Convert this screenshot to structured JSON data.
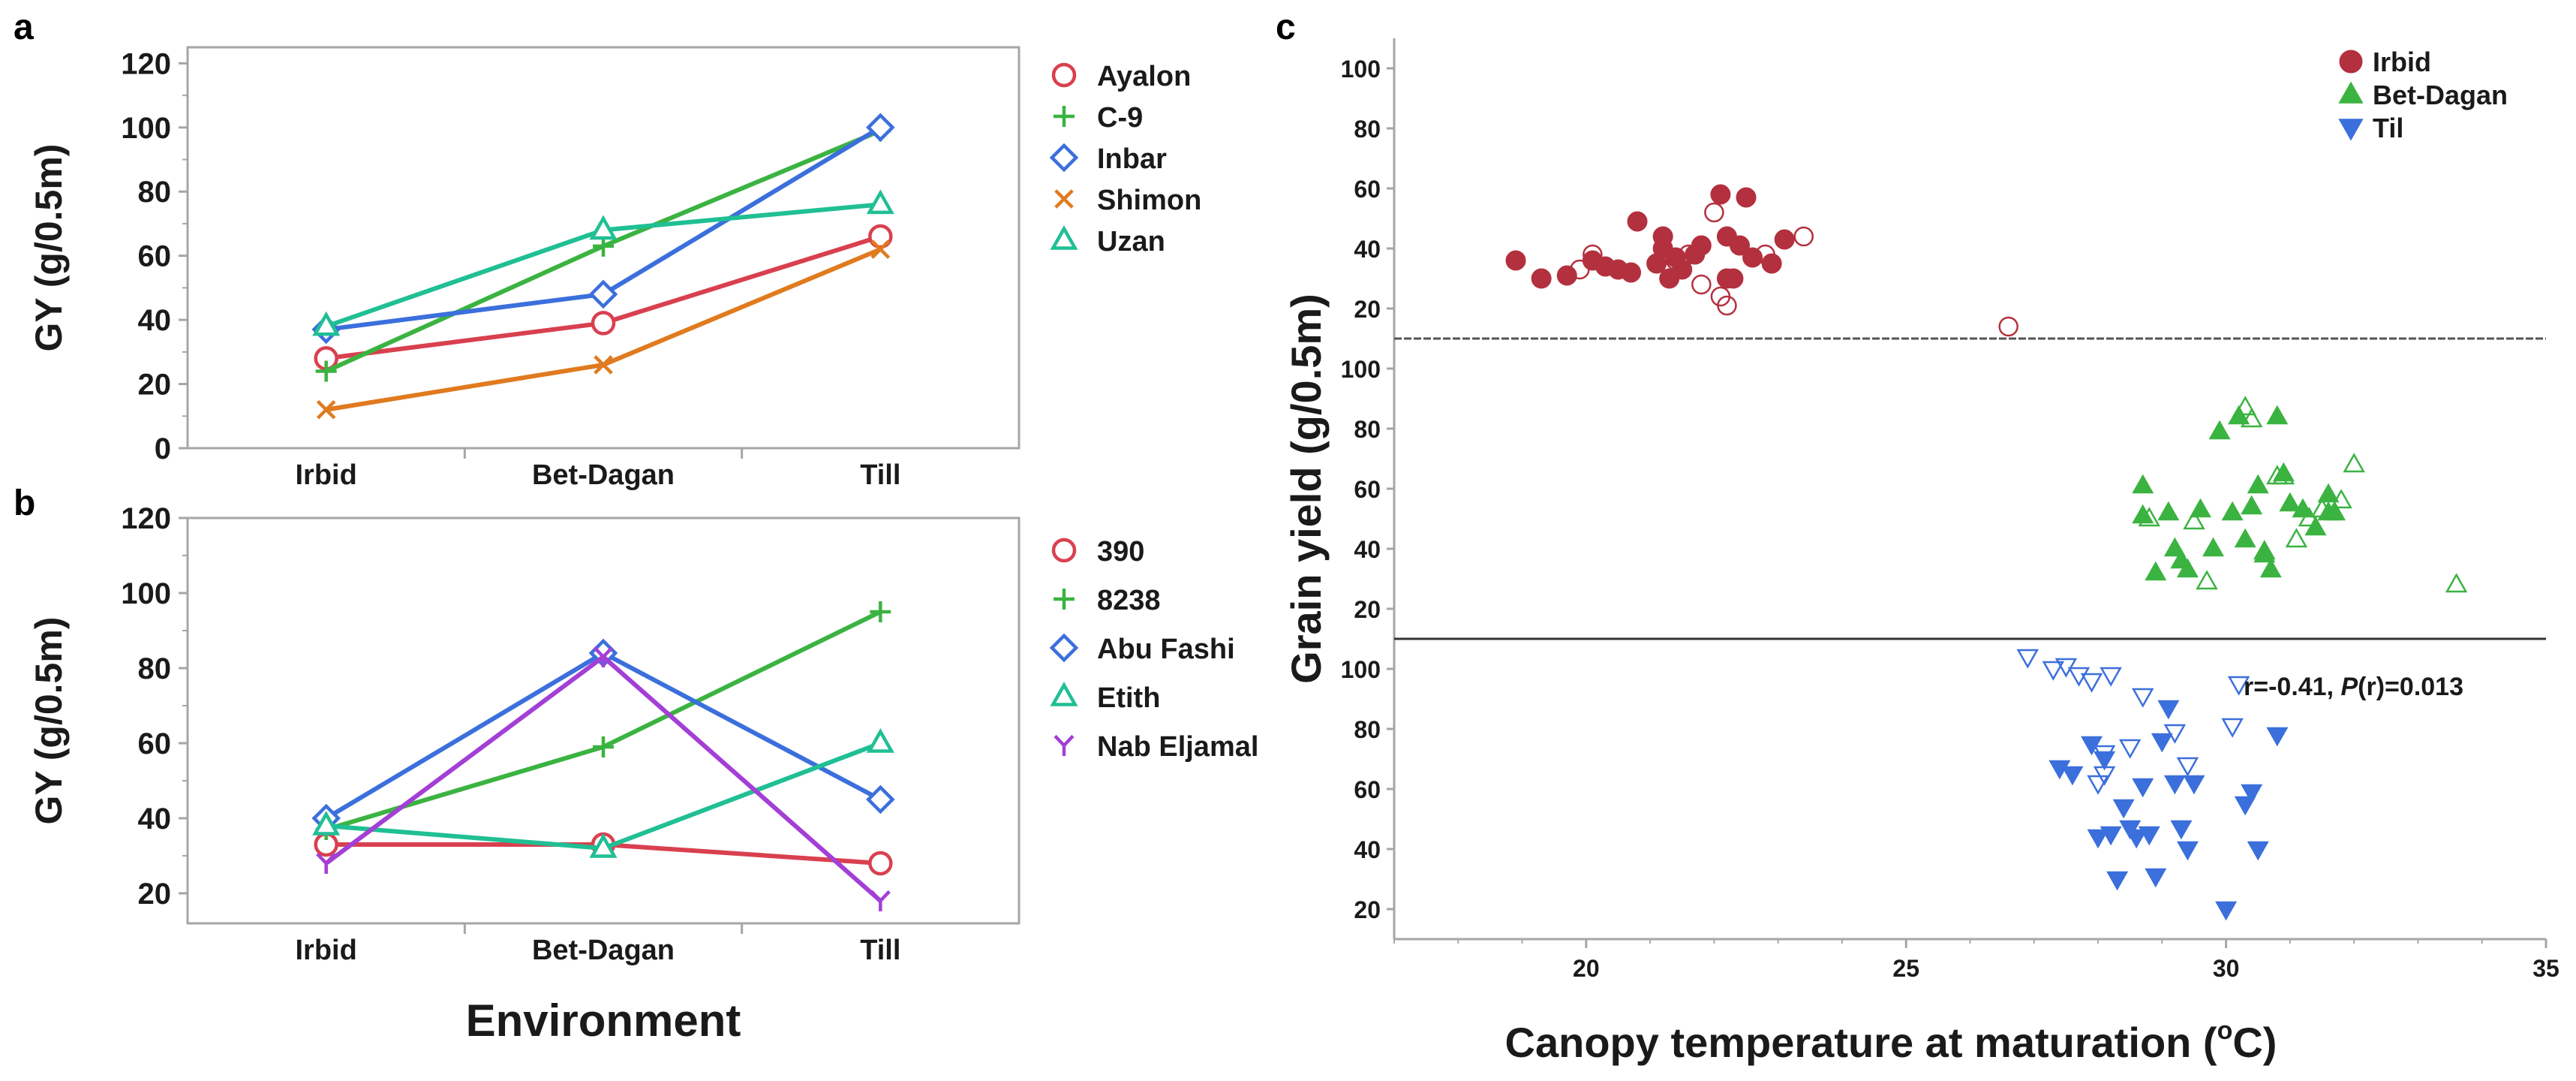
{
  "panels": {
    "a": {
      "label": "a"
    },
    "b": {
      "label": "b"
    },
    "c": {
      "label": "c"
    }
  },
  "colors": {
    "red": "#d9404f",
    "green": "#3bb341",
    "blue": "#3b6fdc",
    "orange": "#e07a1f",
    "teal": "#20bf94",
    "purple": "#a33fd6",
    "darkred": "#b3303e",
    "axis": "#a6a6a6",
    "text": "#1a1a1a"
  },
  "chart_data": [
    {
      "id": "a",
      "type": "line",
      "title": "",
      "xlabel": "",
      "ylabel": "GY (g/0.5m)",
      "categories": [
        "Irbid",
        "Bet-Dagan",
        "Till"
      ],
      "ylim": [
        0,
        125
      ],
      "yticks": [
        0,
        20,
        40,
        60,
        80,
        100,
        120
      ],
      "legend_position": "right",
      "series": [
        {
          "name": "Ayalon",
          "marker": "circle",
          "color": "#d9404f",
          "values": [
            28,
            39,
            66
          ]
        },
        {
          "name": "C-9",
          "marker": "plus",
          "color": "#3bb341",
          "values": [
            24,
            63,
            99
          ]
        },
        {
          "name": "Inbar",
          "marker": "diamond",
          "color": "#3b6fdc",
          "values": [
            37,
            48,
            100
          ]
        },
        {
          "name": "Shimon",
          "marker": "x",
          "color": "#e07a1f",
          "values": [
            12,
            26,
            62
          ]
        },
        {
          "name": "Uzan",
          "marker": "triangle",
          "color": "#20bf94",
          "values": [
            38,
            68,
            76
          ]
        }
      ]
    },
    {
      "id": "b",
      "type": "line",
      "title": "",
      "xlabel": "Environment",
      "ylabel": "GY (g/0.5m)",
      "categories": [
        "Irbid",
        "Bet-Dagan",
        "Till"
      ],
      "ylim": [
        12,
        120
      ],
      "yticks": [
        20,
        40,
        60,
        80,
        100,
        120
      ],
      "legend_position": "right",
      "series": [
        {
          "name": "390",
          "marker": "circle",
          "color": "#d9404f",
          "values": [
            33,
            33,
            28
          ]
        },
        {
          "name": "8238",
          "marker": "plus",
          "color": "#3bb341",
          "values": [
            37,
            59,
            95
          ]
        },
        {
          "name": "Abu Fashi",
          "marker": "diamond",
          "color": "#3b6fdc",
          "values": [
            40,
            84,
            45
          ]
        },
        {
          "name": "Etith",
          "marker": "triangle",
          "color": "#20bf94",
          "values": [
            38,
            32,
            60
          ]
        },
        {
          "name": "Nab Eljamal",
          "marker": "y",
          "color": "#a33fd6",
          "values": [
            28,
            83,
            18
          ]
        }
      ]
    },
    {
      "id": "c",
      "type": "scatter",
      "title": "",
      "xlabel": "Canopy temperature at maturation (°C)",
      "xlabel_main": "Canopy temperature at maturation (",
      "xlabel_sup": "o",
      "xlabel_end": "C)",
      "ylabel": "Grain yield (g/0.5m)",
      "xlim": [
        17,
        35
      ],
      "xticks": [
        20,
        25,
        30,
        35
      ],
      "ylim": [
        10,
        110
      ],
      "yticks": [
        20,
        40,
        60,
        80,
        100
      ],
      "annotation": {
        "r_text": "r=-0.41, ",
        "p_italic": "P",
        "p_text": "(r)=0.013"
      },
      "legend_position": "top-right",
      "legend": [
        "Irbid",
        "Bet-Dagan",
        "Til"
      ],
      "series": [
        {
          "name": "Irbid",
          "marker": "circle",
          "color": "#b3303e",
          "filled": [
            [
              18.9,
              36
            ],
            [
              19.3,
              30
            ],
            [
              19.7,
              31
            ],
            [
              20.1,
              36
            ],
            [
              20.3,
              34
            ],
            [
              20.5,
              33
            ],
            [
              20.7,
              32
            ],
            [
              20.8,
              49
            ],
            [
              21.1,
              35
            ],
            [
              21.2,
              44
            ],
            [
              21.3,
              30
            ],
            [
              21.4,
              37
            ],
            [
              21.5,
              33
            ],
            [
              21.7,
              38
            ],
            [
              21.8,
              41
            ],
            [
              22.1,
              58
            ],
            [
              22.2,
              44
            ],
            [
              22.3,
              30
            ],
            [
              22.4,
              41
            ],
            [
              22.5,
              57
            ],
            [
              22.6,
              37
            ],
            [
              22.9,
              35
            ],
            [
              23.1,
              43
            ],
            [
              21.2,
              40
            ],
            [
              22.2,
              30
            ]
          ],
          "open": [
            [
              19.9,
              33
            ],
            [
              20.1,
              38
            ],
            [
              21.4,
              36
            ],
            [
              21.6,
              38
            ],
            [
              21.8,
              28
            ],
            [
              22,
              52
            ],
            [
              22.1,
              24
            ],
            [
              22.2,
              21
            ],
            [
              22.8,
              38
            ],
            [
              23.4,
              44
            ],
            [
              26.6,
              14
            ]
          ]
        },
        {
          "name": "Bet-Dagan",
          "marker": "triangle",
          "color": "#3bb341",
          "filled": [
            [
              28.7,
              61
            ],
            [
              28.7,
              51
            ],
            [
              28.9,
              32
            ],
            [
              29.1,
              52
            ],
            [
              29.2,
              40
            ],
            [
              29.3,
              36
            ],
            [
              29.4,
              33
            ],
            [
              29.6,
              53
            ],
            [
              29.8,
              40
            ],
            [
              29.9,
              79
            ],
            [
              30.1,
              52
            ],
            [
              30.2,
              84
            ],
            [
              30.3,
              43
            ],
            [
              30.4,
              54
            ],
            [
              30.5,
              61
            ],
            [
              30.6,
              38
            ],
            [
              30.7,
              33
            ],
            [
              30.8,
              84
            ],
            [
              30.9,
              65
            ],
            [
              31,
              55
            ],
            [
              31.2,
              53
            ],
            [
              31.4,
              47
            ],
            [
              31.6,
              52
            ],
            [
              31.7,
              52
            ],
            [
              31.6,
              58
            ]
          ],
          "open": [
            [
              28.8,
              50
            ],
            [
              29.5,
              49
            ],
            [
              29.7,
              29
            ],
            [
              30.3,
              87
            ],
            [
              30.4,
              83
            ],
            [
              30.6,
              39
            ],
            [
              30.8,
              64
            ],
            [
              30.9,
              64
            ],
            [
              31.1,
              43
            ],
            [
              31.3,
              50
            ],
            [
              31.5,
              53
            ],
            [
              31.8,
              56
            ],
            [
              32,
              68
            ],
            [
              33.6,
              28
            ]
          ]
        },
        {
          "name": "Til",
          "marker": "triangle-down",
          "color": "#3b6fdc",
          "filled": [
            [
              27.4,
              67
            ],
            [
              27.6,
              65
            ],
            [
              27.9,
              75
            ],
            [
              28,
              44
            ],
            [
              28.1,
              70
            ],
            [
              28.2,
              45
            ],
            [
              28.3,
              30
            ],
            [
              28.4,
              54
            ],
            [
              28.5,
              47
            ],
            [
              28.6,
              44
            ],
            [
              28.7,
              61
            ],
            [
              28.8,
              45
            ],
            [
              28.9,
              31
            ],
            [
              29,
              76
            ],
            [
              29.1,
              87
            ],
            [
              29.2,
              62
            ],
            [
              29.3,
              47
            ],
            [
              29.4,
              40
            ],
            [
              29.5,
              62
            ],
            [
              30,
              20
            ],
            [
              30.3,
              55
            ],
            [
              30.4,
              59
            ],
            [
              30.5,
              40
            ],
            [
              30.8,
              78
            ]
          ],
          "open": [
            [
              26.9,
              104
            ],
            [
              27.3,
              100
            ],
            [
              27.5,
              101
            ],
            [
              27.7,
              98
            ],
            [
              27.9,
              96
            ],
            [
              28,
              62
            ],
            [
              28.1,
              72
            ],
            [
              28.1,
              65
            ],
            [
              28.2,
              98
            ],
            [
              28.5,
              74
            ],
            [
              28.7,
              91
            ],
            [
              29.2,
              79
            ],
            [
              29.4,
              68
            ],
            [
              30.1,
              81
            ],
            [
              30.2,
              95
            ]
          ]
        }
      ]
    }
  ]
}
